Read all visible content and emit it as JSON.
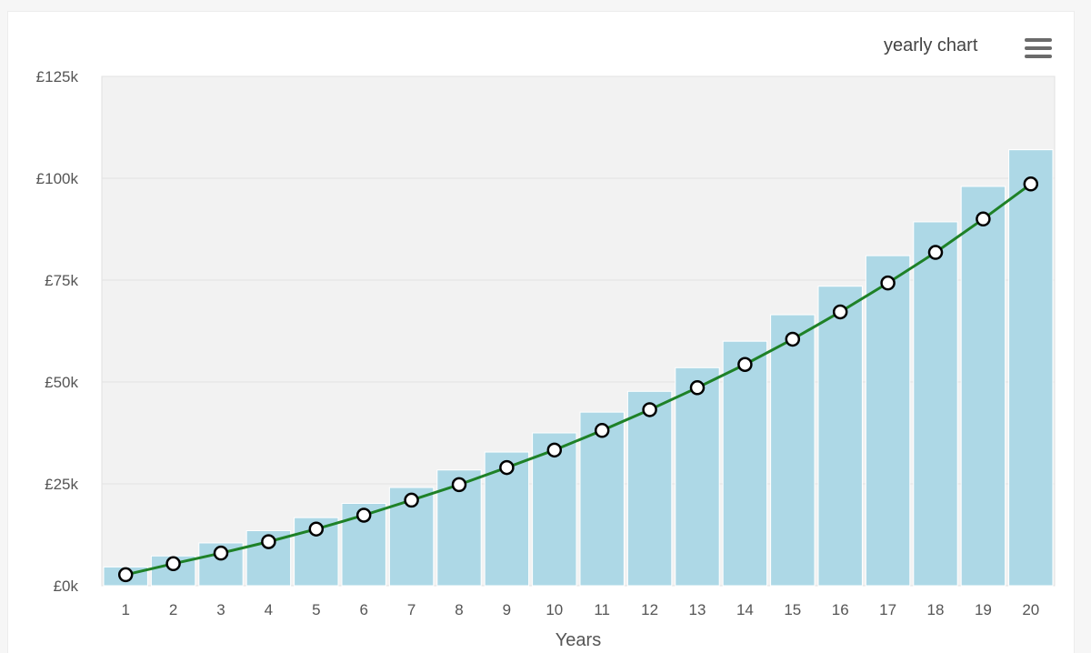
{
  "header": {
    "title": "yearly chart",
    "menu_icon": "hamburger-menu-icon"
  },
  "colors": {
    "bar": "#add8e6",
    "line": "#1e8127",
    "plot_background": "#f2f2f2",
    "marker_fill": "#ffffff",
    "marker_stroke": "#000000"
  },
  "chart_data": {
    "type": "bar",
    "title": "",
    "xlabel": "Years",
    "ylabel": "",
    "categories": [
      "1",
      "2",
      "3",
      "4",
      "5",
      "6",
      "7",
      "8",
      "9",
      "10",
      "11",
      "12",
      "13",
      "14",
      "15",
      "16",
      "17",
      "18",
      "19",
      "20"
    ],
    "series": [
      {
        "type": "bar",
        "values": [
          4600,
          7300,
          10500,
          13500,
          16700,
          20200,
          24100,
          28400,
          32800,
          37500,
          42600,
          47700,
          53500,
          60000,
          66500,
          73500,
          81000,
          89300,
          98000,
          107000
        ]
      },
      {
        "type": "line",
        "values": [
          2700,
          5400,
          8000,
          10800,
          13900,
          17300,
          21000,
          24800,
          29000,
          33300,
          38100,
          43200,
          48600,
          54300,
          60500,
          67200,
          74300,
          81800,
          90000,
          98600
        ]
      }
    ],
    "ylim": [
      0,
      125000
    ],
    "yticks": [
      "£0k",
      "£25k",
      "£50k",
      "£75k",
      "£100k",
      "£125k"
    ],
    "grid": true,
    "legend": "none"
  }
}
